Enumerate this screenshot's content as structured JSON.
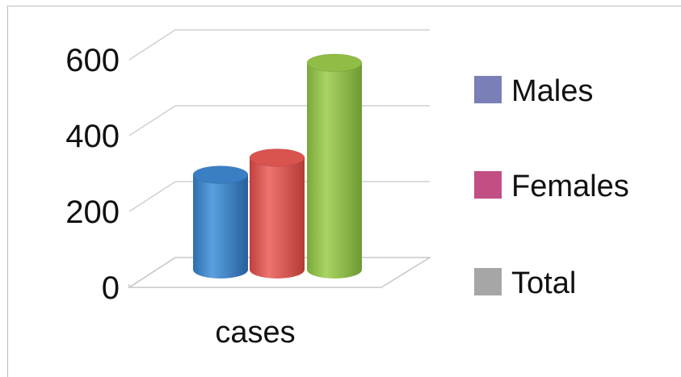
{
  "chart_data": {
    "type": "bar",
    "style": "3d-cylinder",
    "categories": [
      "cases"
    ],
    "series": [
      {
        "name": "Males",
        "values": [
          250
        ],
        "color": "#3a7fc4",
        "legend_color": "#7b7fb8"
      },
      {
        "name": "Females",
        "values": [
          295
        ],
        "color": "#d9534f",
        "legend_color": "#c24f84"
      },
      {
        "name": "Total",
        "values": [
          545
        ],
        "color": "#8fbd45",
        "legend_color": "#a6a6a6"
      }
    ],
    "y_ticks": [
      "0",
      "200",
      "400",
      "600"
    ],
    "ylim": [
      0,
      600
    ],
    "grid": true,
    "legend": "right"
  }
}
